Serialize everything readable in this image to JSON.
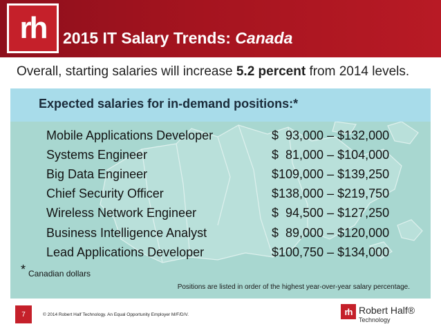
{
  "header": {
    "logo_text": "rh",
    "title_prefix": "2015 IT Salary Trends: ",
    "title_region": "Canada"
  },
  "subtitle": {
    "before": "Overall, starting salaries will increase ",
    "highlight": "5.2 percent",
    "after": " from 2014 levels."
  },
  "banner": {
    "text": "Expected salaries for in-demand positions:*"
  },
  "positions": [
    {
      "title": "Mobile Applications Developer",
      "salary": "$  93,000 – $132,000"
    },
    {
      "title": "Systems Engineer",
      "salary": "$  81,000 – $104,000"
    },
    {
      "title": "Big Data Engineer",
      "salary": "$109,000 – $139,250"
    },
    {
      "title": "Chief Security Officer",
      "salary": "$138,000 – $219,750"
    },
    {
      "title": "Wireless Network Engineer",
      "salary": "$  94,500 – $127,250"
    },
    {
      "title": "Business Intelligence Analyst",
      "salary": "$  89,000 – $120,000"
    },
    {
      "title": "Lead Applications Developer",
      "salary": "$100,750 – $134,000"
    }
  ],
  "footnote": {
    "star": "*",
    "text": "Canadian dollars"
  },
  "order_note": "Positions are listed in order of the highest year-over-year salary percentage.",
  "footer": {
    "page_number": "7",
    "copyright": "© 2014 Robert Half Technology. An Equal Opportunity Employer M/F/D/V.",
    "brand_mark": "rh",
    "brand_name": "Robert Half®",
    "brand_sub": "Technology"
  },
  "colors": {
    "header_red": "#a5141f",
    "logo_red": "#c5202a",
    "banner_blue": "#a8dcea",
    "panel_teal": "#a8d7d0"
  }
}
